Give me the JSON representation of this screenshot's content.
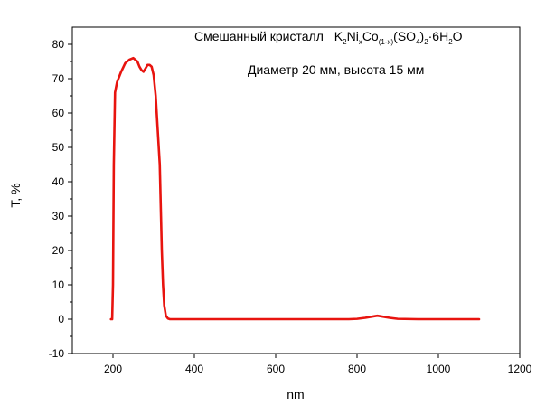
{
  "chart_data": {
    "type": "line",
    "xlabel": "nm",
    "ylabel": "T, %",
    "xlim": [
      100,
      1200
    ],
    "ylim": [
      -10,
      85
    ],
    "xticks": [
      200,
      400,
      600,
      800,
      1000,
      1200
    ],
    "yticks": [
      -10,
      0,
      10,
      20,
      30,
      40,
      50,
      60,
      70,
      80
    ],
    "grid": false,
    "annotation_prefix": "Смешанный кристалл",
    "formula": {
      "k": "K",
      "k_sub": "2",
      "ni": "Ni",
      "ni_sub": "x",
      "co": "Co",
      "co_sub": "(1-x)",
      "so4": "(SO",
      "so4_sub": "4",
      "close": ")",
      "close_sub": "2",
      "dot": "·6H",
      "h_sub": "2",
      "o": "O"
    },
    "subtitle": "Диаметр 20 мм, высота 15 мм",
    "color": "#e8140f",
    "series": [
      {
        "x": [
          195,
          198,
          200,
          202,
          205,
          210,
          220,
          230,
          240,
          250,
          255,
          260,
          265,
          270,
          275,
          280,
          285,
          290,
          295,
          300,
          305,
          310,
          315,
          318,
          320,
          323,
          326,
          330,
          335,
          340,
          350,
          400,
          500,
          600,
          700,
          780,
          800,
          820,
          840,
          850,
          860,
          880,
          900,
          950,
          1000,
          1050,
          1080,
          1100
        ],
        "y": [
          0,
          0,
          10,
          45,
          66,
          69,
          72,
          74.5,
          75.5,
          76,
          75.5,
          75,
          73.5,
          72.5,
          72,
          73,
          74,
          74,
          73.5,
          71,
          65,
          55,
          45,
          30,
          20,
          10,
          4,
          1,
          0.2,
          0,
          0,
          0,
          0,
          0,
          0,
          0,
          0.1,
          0.4,
          0.8,
          1,
          0.8,
          0.4,
          0.1,
          0,
          0,
          0,
          0,
          0
        ]
      }
    ]
  }
}
